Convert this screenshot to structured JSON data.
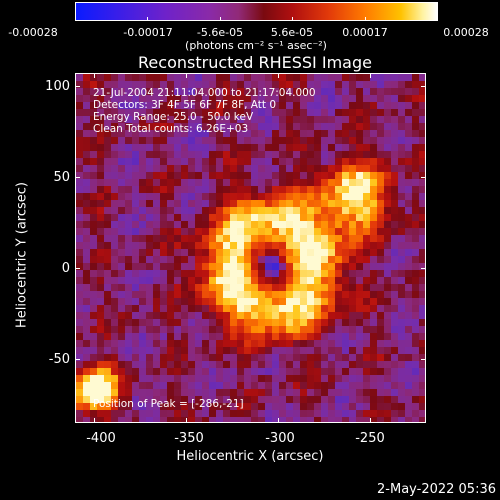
{
  "colorbar": {
    "tick_labels": [
      "-0.00028",
      "-0.00017",
      "-5.6e-05",
      "5.6e-05",
      "0.00017",
      "0.00028"
    ],
    "units_label": "(photons cm⁻² s⁻¹ asec⁻²)",
    "colors": [
      "#0a1bff",
      "#6f22c9",
      "#912a78",
      "#b01010",
      "#ff7a00",
      "#ffc200",
      "#ffffff"
    ]
  },
  "plot": {
    "title": "Reconstructed RHESSI Image",
    "info_lines": [
      "21-Jul-2004 21:11:04.000 to 21:17:04.000",
      "Detectors: 3F 4F 5F 6F 7F 8F, Att 0",
      "Energy Range: 25.0 - 50.0 keV",
      "Clean     Total counts: 6.26E+03"
    ],
    "peak_label": "Position of Peak = [-286,-21]",
    "x_axis_label": "Heliocentric X (arcsec)",
    "y_axis_label": "Heliocentric Y (arcsec)",
    "x_ticks": [
      "-400",
      "-350",
      "-300",
      "-250"
    ],
    "y_ticks": [
      "100",
      "50",
      "0",
      "-50"
    ],
    "x_range": [
      -410,
      -220
    ],
    "y_range": [
      -85,
      105
    ],
    "peak": [
      -286,
      -21
    ]
  },
  "footer": {
    "date": "2-May-2022 05:36"
  }
}
